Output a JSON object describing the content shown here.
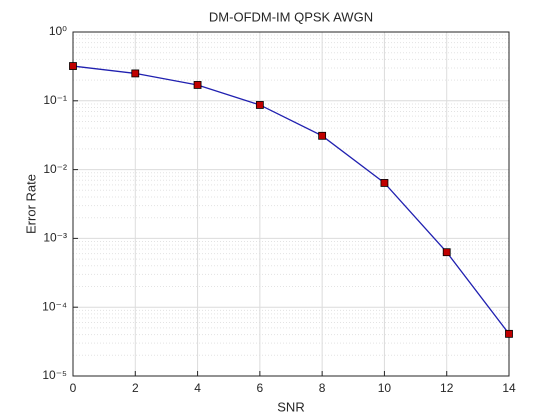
{
  "chart_data": {
    "type": "line",
    "title": "DM-OFDM-IM QPSK AWGN",
    "x_label": "SNR",
    "y_label": "Error Rate",
    "x": [
      0,
      2,
      4,
      6,
      8,
      10,
      12,
      14
    ],
    "series": [
      {
        "name": "DM-OFDM-IM QPSK AWGN",
        "color": "#2020b0",
        "marker_color": "#c00000",
        "values": [
          0.32,
          0.25,
          0.17,
          0.087,
          0.031,
          0.0064,
          0.00063,
          4.1e-05
        ]
      }
    ],
    "xlim": [
      0,
      14
    ],
    "xticks": [
      0,
      2,
      4,
      6,
      8,
      10,
      12,
      14
    ],
    "ylim": [
      1e-05,
      1
    ],
    "y_scale": "log",
    "yticks": [
      {
        "value": 1e-05,
        "label": "10⁻⁵"
      },
      {
        "value": 0.0001,
        "label": "10⁻⁴"
      },
      {
        "value": 0.001,
        "label": "10⁻³"
      },
      {
        "value": 0.01,
        "label": "10⁻²"
      },
      {
        "value": 0.1,
        "label": "10⁻¹"
      },
      {
        "value": 1,
        "label": "10⁰"
      }
    ],
    "grid": true,
    "minor_grid": true
  }
}
